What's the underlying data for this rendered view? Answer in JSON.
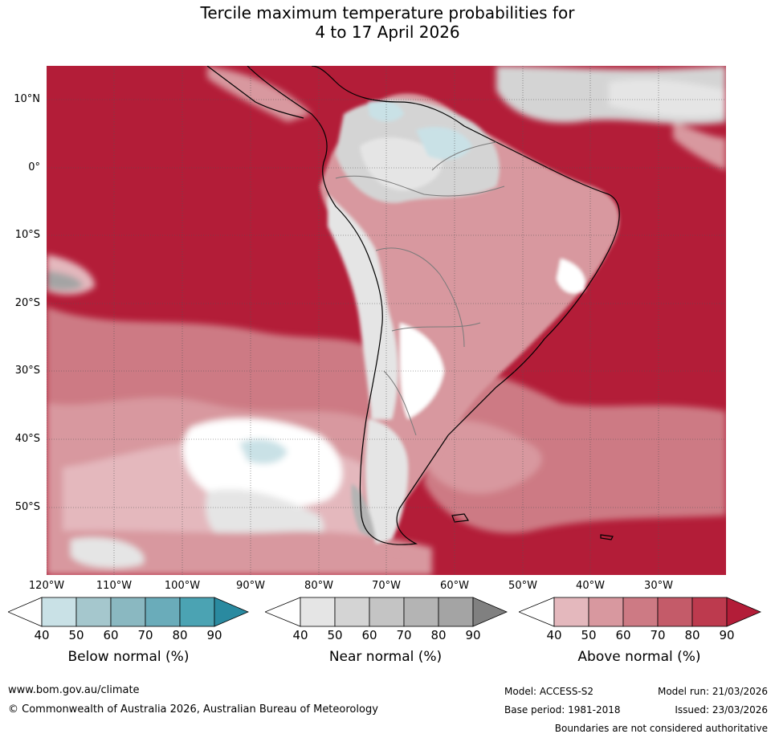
{
  "title_line1": "Tercile maximum temperature probabilities for",
  "title_line2": "4 to 17 April 2026",
  "lat_labels": [
    "10°N",
    "0°",
    "10°S",
    "20°S",
    "30°S",
    "40°S",
    "50°S"
  ],
  "lon_labels": [
    "120°W",
    "110°W",
    "100°W",
    "90°W",
    "80°W",
    "70°W",
    "60°W",
    "50°W",
    "40°W",
    "30°W"
  ],
  "colorbars": [
    {
      "title": "Below normal (%)",
      "ticks": [
        "40",
        "50",
        "60",
        "70",
        "80",
        "90"
      ],
      "colors": [
        "#ffffff",
        "#c9e1e6",
        "#a5c7cd",
        "#8ab8c1",
        "#6aacba",
        "#4ba3b3",
        "#2a8aa0"
      ]
    },
    {
      "title": "Near normal (%)",
      "ticks": [
        "40",
        "50",
        "60",
        "70",
        "80",
        "90"
      ],
      "colors": [
        "#ffffff",
        "#e5e5e5",
        "#d4d4d4",
        "#c4c4c4",
        "#b4b4b4",
        "#a4a4a4",
        "#808080"
      ]
    },
    {
      "title": "Above normal (%)",
      "ticks": [
        "40",
        "50",
        "60",
        "70",
        "80",
        "90"
      ],
      "colors": [
        "#ffffff",
        "#e4b8bd",
        "#d8989f",
        "#cd7a84",
        "#c45b69",
        "#bd3a4e",
        "#b31d38"
      ]
    }
  ],
  "footer": {
    "url": "www.bom.gov.au/climate",
    "copyright": "© Commonwealth of Australia 2026, Australian Bureau of Meteorology",
    "model": "Model: ACCESS-S2",
    "model_run": "Model run: 21/03/2026",
    "base_period": "Base period: 1981-2018",
    "issued": "Issued: 23/03/2026",
    "disclaimer": "Boundaries are not considered authoritative"
  },
  "map_colors": {
    "ocean_above": "#b31d38",
    "above_70": "#cd7a84",
    "above_60": "#d8989f",
    "above_50": "#e4b8bd",
    "near_50": "#e5e5e5",
    "near_60": "#d4d4d4",
    "near_80": "#a4a4a4",
    "below_50": "#c9e1e6",
    "below_60": "#a5c7cd"
  }
}
